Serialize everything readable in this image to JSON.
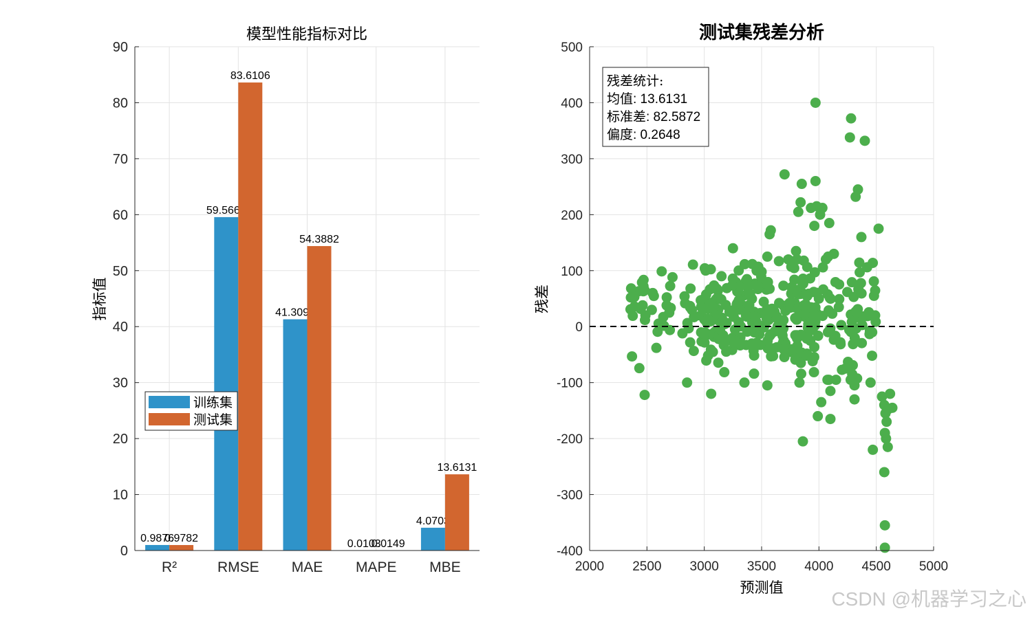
{
  "chart_data": [
    {
      "type": "bar",
      "title": "模型性能指标对比",
      "xlabel": "",
      "ylabel": "指标值",
      "ylim": [
        0,
        90
      ],
      "yticks": [
        0,
        10,
        20,
        30,
        40,
        50,
        60,
        70,
        80,
        90
      ],
      "grid": true,
      "categories": [
        "R²",
        "RMSE",
        "MAE",
        "MAPE",
        "MBE"
      ],
      "series": [
        {
          "name": "训练集",
          "color": "#2f93c9",
          "values": [
            0.9876,
            59.5661,
            41.3096,
            0.0103,
            4.0703
          ],
          "labels": [
            "0.9876",
            "59.5661",
            "41.3096",
            "0.0103",
            "4.0703"
          ]
        },
        {
          "name": "测试集",
          "color": "#d2662f",
          "values": [
            0.9782,
            83.6106,
            54.3882,
            0.0149,
            13.6131
          ],
          "labels": [
            "0.9782",
            "83.6106",
            "54.3882",
            "0.0149",
            "13.6131"
          ]
        }
      ],
      "legend": {
        "position": "left-middle",
        "entries": [
          "训练集",
          "测试集"
        ]
      }
    },
    {
      "type": "scatter",
      "title": "测试集残差分析",
      "xlabel": "预测值",
      "ylabel": "残差",
      "xlim": [
        2000,
        5000
      ],
      "ylim": [
        -400,
        500
      ],
      "xticks": [
        2000,
        2500,
        3000,
        3500,
        4000,
        4500,
        5000
      ],
      "yticks": [
        -400,
        -300,
        -200,
        -100,
        0,
        100,
        200,
        300,
        400,
        500
      ],
      "grid": true,
      "reference_line": {
        "y": 0,
        "style": "dashed",
        "color": "#000000"
      },
      "point_color": "#4cae4c",
      "annotation": {
        "title": "残差统计:",
        "lines": [
          "均值: 13.6131",
          "标准差: 82.5872",
          "偏度: 0.2648"
        ]
      },
      "stats": {
        "mean": 13.6131,
        "std": 82.5872,
        "skewness": 0.2648
      },
      "outliers": [
        [
          3970,
          400
        ],
        [
          4280,
          372
        ],
        [
          4270,
          338
        ],
        [
          4400,
          332
        ],
        [
          3700,
          272
        ],
        [
          3850,
          255
        ],
        [
          3970,
          260
        ],
        [
          4340,
          245
        ],
        [
          4320,
          232
        ],
        [
          3840,
          222
        ],
        [
          3930,
          212
        ],
        [
          3980,
          215
        ],
        [
          4030,
          212
        ],
        [
          4010,
          200
        ],
        [
          4090,
          185
        ],
        [
          3820,
          205
        ],
        [
          3960,
          180
        ],
        [
          4520,
          175
        ],
        [
          3580,
          172
        ],
        [
          3570,
          165
        ],
        [
          4370,
          160
        ],
        [
          3800,
          135
        ],
        [
          3250,
          140
        ],
        [
          4080,
          125
        ],
        [
          4130,
          130
        ],
        [
          4420,
          106
        ],
        [
          4480,
          55
        ],
        [
          4490,
          20
        ],
        [
          4550,
          -125
        ],
        [
          4570,
          -140
        ],
        [
          4580,
          -155
        ],
        [
          4600,
          -148
        ],
        [
          4620,
          -120
        ],
        [
          4640,
          -145
        ],
        [
          4590,
          -170
        ],
        [
          4575,
          -190
        ],
        [
          4585,
          -200
        ],
        [
          4600,
          -215
        ],
        [
          4470,
          -220
        ],
        [
          4570,
          -260
        ],
        [
          4575,
          -355
        ],
        [
          4575,
          -395
        ],
        [
          3860,
          -205
        ],
        [
          4100,
          -165
        ],
        [
          3990,
          -160
        ],
        [
          4020,
          -135
        ],
        [
          4310,
          -130
        ],
        [
          4310,
          -105
        ],
        [
          4450,
          -100
        ],
        [
          4100,
          -115
        ],
        [
          3350,
          -100
        ],
        [
          3060,
          -120
        ],
        [
          2480,
          -122
        ],
        [
          2850,
          -100
        ],
        [
          3550,
          -105
        ],
        [
          3830,
          -100
        ],
        [
          4230,
          -75
        ],
        [
          4290,
          -85
        ],
        [
          2470,
          72
        ],
        [
          2480,
          65
        ],
        [
          2360,
          52
        ],
        [
          2390,
          53
        ],
        [
          2550,
          60
        ],
        [
          2880,
          68
        ],
        [
          3150,
          90
        ],
        [
          3500,
          98
        ],
        [
          3550,
          125
        ]
      ],
      "cluster": {
        "x_range": [
          2350,
          4500
        ],
        "y_center": 20,
        "y_spread": 45,
        "count": 360
      }
    }
  ],
  "watermark": "CSDN @机器学习之心"
}
